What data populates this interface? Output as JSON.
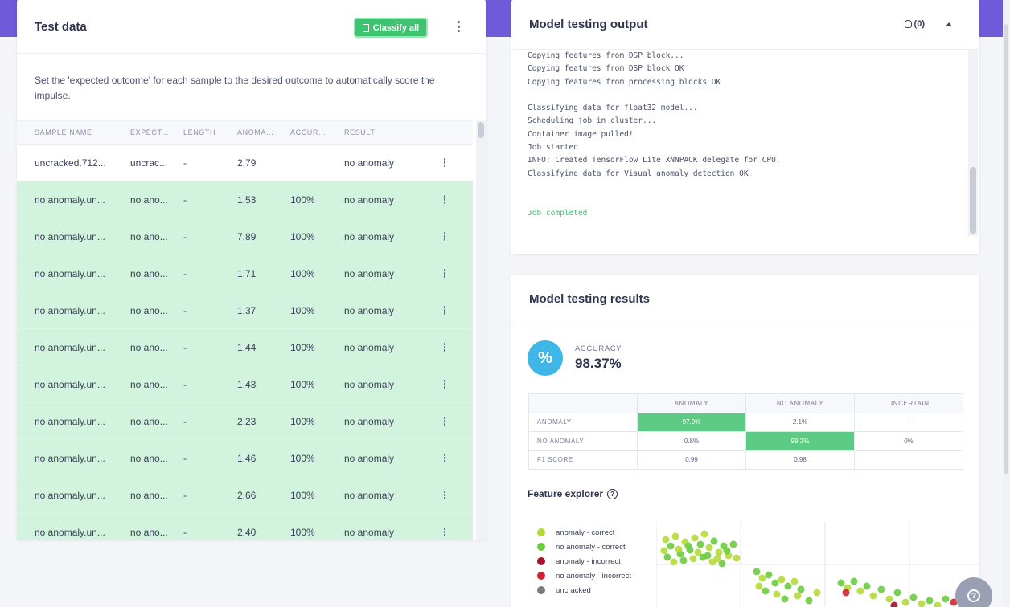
{
  "test_data": {
    "title": "Test data",
    "classify_label": "Classify all",
    "description": "Set the 'expected outcome' for each sample to the desired outcome to automatically score the impulse.",
    "columns": [
      "SAMPLE NAME",
      "EXPECT...",
      "LENGTH",
      "ANOMA...",
      "ACCUR...",
      "RESULT"
    ],
    "rows": [
      {
        "name": "uncracked.712...",
        "expected": "uncrac...",
        "length": "-",
        "anomaly": "2.79",
        "accuracy": "",
        "result": "no anomaly",
        "highlight": false
      },
      {
        "name": "no anomaly.un...",
        "expected": "no ano...",
        "length": "-",
        "anomaly": "1.53",
        "accuracy": "100%",
        "result": "no anomaly",
        "highlight": true
      },
      {
        "name": "no anomaly.un...",
        "expected": "no ano...",
        "length": "-",
        "anomaly": "7.89",
        "accuracy": "100%",
        "result": "no anomaly",
        "highlight": true
      },
      {
        "name": "no anomaly.un...",
        "expected": "no ano...",
        "length": "-",
        "anomaly": "1.71",
        "accuracy": "100%",
        "result": "no anomaly",
        "highlight": true
      },
      {
        "name": "no anomaly.un...",
        "expected": "no ano...",
        "length": "-",
        "anomaly": "1.37",
        "accuracy": "100%",
        "result": "no anomaly",
        "highlight": true
      },
      {
        "name": "no anomaly.un...",
        "expected": "no ano...",
        "length": "-",
        "anomaly": "1.44",
        "accuracy": "100%",
        "result": "no anomaly",
        "highlight": true
      },
      {
        "name": "no anomaly.un...",
        "expected": "no ano...",
        "length": "-",
        "anomaly": "1.43",
        "accuracy": "100%",
        "result": "no anomaly",
        "highlight": true
      },
      {
        "name": "no anomaly.un...",
        "expected": "no ano...",
        "length": "-",
        "anomaly": "2.23",
        "accuracy": "100%",
        "result": "no anomaly",
        "highlight": true
      },
      {
        "name": "no anomaly.un...",
        "expected": "no ano...",
        "length": "-",
        "anomaly": "1.46",
        "accuracy": "100%",
        "result": "no anomaly",
        "highlight": true
      },
      {
        "name": "no anomaly.un...",
        "expected": "no ano...",
        "length": "-",
        "anomaly": "2.66",
        "accuracy": "100%",
        "result": "no anomaly",
        "highlight": true
      },
      {
        "name": "no anomaly.un...",
        "expected": "no ano...",
        "length": "-",
        "anomaly": "2.40",
        "accuracy": "100%",
        "result": "no anomaly",
        "highlight": true
      }
    ]
  },
  "output": {
    "title": "Model testing output",
    "bug_count": "(0)",
    "log_lines": [
      "Copying features from DSP block...",
      "Copying features from DSP block OK",
      "Copying features from processing blocks OK",
      "",
      "Classifying data for float32 model...",
      "Scheduling job in cluster...",
      "Container image pulled!",
      "Job started",
      "INFO: Created TensorFlow Lite XNNPACK delegate for CPU.",
      "Classifying data for Visual anomaly detection OK",
      "",
      ""
    ],
    "completed_line": "Job completed"
  },
  "results": {
    "title": "Model testing results",
    "accuracy_icon": "%",
    "accuracy_label": "ACCURACY",
    "accuracy_value": "98.37%",
    "matrix": {
      "columns": [
        "ANOMALY",
        "NO ANOMALY",
        "UNCERTAIN"
      ],
      "rows": [
        {
          "label": "ANOMALY",
          "cells": [
            "97.9%",
            "2.1%",
            "-"
          ]
        },
        {
          "label": "NO ANOMALY",
          "cells": [
            "0.8%",
            "99.2%",
            "0%"
          ]
        },
        {
          "label": "F1 SCORE",
          "cells": [
            "0.99",
            "0.98",
            ""
          ]
        }
      ]
    },
    "feature_title": "Feature explorer",
    "legend": [
      {
        "label": "anomaly - correct",
        "color": "#b5d93a"
      },
      {
        "label": "no anomaly - correct",
        "color": "#6acb3f"
      },
      {
        "label": "anomaly - incorrect",
        "color": "#a3132a"
      },
      {
        "label": "no anomaly - incorrect",
        "color": "#d1232f"
      },
      {
        "label": "uncracked",
        "color": "#7a7a7a"
      }
    ]
  },
  "colors": {
    "accent": "#6f5ad9",
    "success": "#3ec471",
    "row_highlight": "#d2f3dd",
    "info": "#3fb6e8"
  }
}
